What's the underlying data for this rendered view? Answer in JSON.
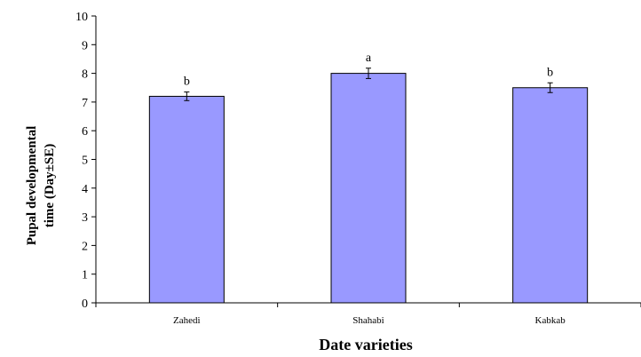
{
  "chart_data": {
    "type": "bar",
    "title": "",
    "xlabel": "Date varieties",
    "ylabel_lines": [
      "Pupal developmental",
      "time (Day±SE)"
    ],
    "categories": [
      "Zahedi",
      "Shahabi",
      "Kabkab"
    ],
    "values": [
      7.2,
      8.0,
      7.5
    ],
    "errors": [
      0.15,
      0.18,
      0.17
    ],
    "significance": [
      "b",
      "a",
      "b"
    ],
    "ylim": [
      0,
      10
    ],
    "yticks": [
      "0",
      "1",
      "2",
      "3",
      "4",
      "5",
      "6",
      "7",
      "8",
      "9",
      "10"
    ],
    "grid": false,
    "legend": "none",
    "bar_color": "#9999ff",
    "bar_edge_color": "#000000"
  }
}
